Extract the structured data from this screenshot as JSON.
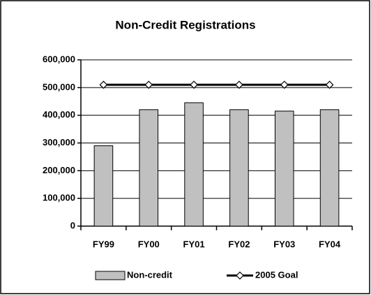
{
  "chart_data": {
    "type": "bar",
    "title": "Non-Credit Registrations",
    "categories": [
      "FY99",
      "FY00",
      "FY01",
      "FY02",
      "FY03",
      "FY04"
    ],
    "series": [
      {
        "name": "Non-credit",
        "type": "bar",
        "color": "#c0c0c0",
        "values": [
          290000,
          420000,
          445000,
          420000,
          415000,
          420000
        ]
      },
      {
        "name": "2005 Goal",
        "type": "line",
        "color": "#000000",
        "values": [
          510000,
          510000,
          510000,
          510000,
          510000,
          510000
        ]
      }
    ],
    "ylim": [
      0,
      600000
    ],
    "yticks": [
      0,
      {
        "value": 100000,
        "label": "100,000"
      },
      {
        "value": 200000,
        "label": "200,000"
      },
      {
        "value": 300000,
        "label": "300,000"
      },
      {
        "value": 400000,
        "label": "400,000"
      },
      {
        "value": 500000,
        "label": "500,000"
      },
      {
        "value": 600000,
        "label": "600,000"
      }
    ],
    "grid": true,
    "legend": "bottom"
  }
}
